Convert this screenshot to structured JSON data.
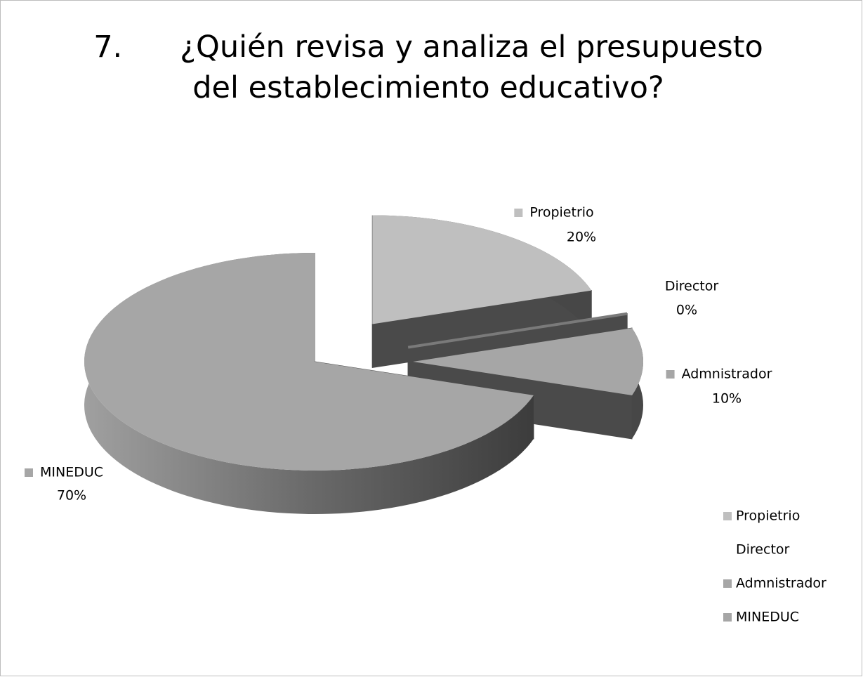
{
  "chart_data": {
    "type": "pie",
    "title": "7.      ¿Quién revisa y analiza el presupuesto del establecimiento educativo?",
    "categories": [
      "Propietrio",
      "Director",
      "Admnistrador",
      "MINEDUC"
    ],
    "values": [
      20,
      0,
      10,
      70
    ],
    "value_labels": [
      "20%",
      "0%",
      "10%",
      "70%"
    ],
    "colors": [
      "#bfbfbf",
      "#7a7a7a",
      "#a6a6a6",
      "#a6a6a6"
    ],
    "legend": "right"
  }
}
